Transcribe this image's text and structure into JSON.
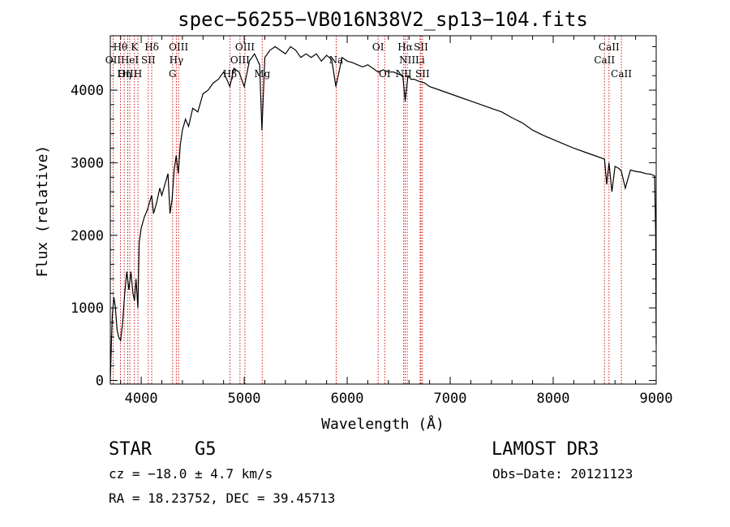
{
  "chart_data": {
    "type": "line",
    "title": "spec−56255−VB016N38V2_sp13−104.fits",
    "xlabel": "Wavelength (Å)",
    "ylabel": "Flux (relative)",
    "xlim": [
      3700,
      9000
    ],
    "ylim": [
      -50,
      4750
    ],
    "xticks": [
      4000,
      5000,
      6000,
      7000,
      8000,
      9000
    ],
    "yticks": [
      0,
      1000,
      2000,
      3000,
      4000
    ],
    "grid": false,
    "series": [
      {
        "name": "flux",
        "x": [
          3700,
          3710,
          3720,
          3735,
          3750,
          3765,
          3780,
          3800,
          3820,
          3840,
          3860,
          3880,
          3900,
          3920,
          3935,
          3950,
          3968,
          3980,
          4000,
          4030,
          4060,
          4080,
          4102,
          4120,
          4150,
          4180,
          4200,
          4230,
          4260,
          4280,
          4300,
          4320,
          4340,
          4360,
          4380,
          4400,
          4430,
          4460,
          4500,
          4550,
          4600,
          4650,
          4700,
          4750,
          4800,
          4861,
          4900,
          4950,
          5000,
          5050,
          5100,
          5150,
          5172,
          5200,
          5250,
          5300,
          5350,
          5400,
          5450,
          5500,
          5550,
          5600,
          5650,
          5700,
          5750,
          5800,
          5850,
          5890,
          5950,
          6000,
          6050,
          6100,
          6150,
          6200,
          6250,
          6300,
          6350,
          6400,
          6450,
          6500,
          6540,
          6563,
          6590,
          6620,
          6650,
          6700,
          6750,
          6800,
          6900,
          7000,
          7100,
          7200,
          7300,
          7400,
          7500,
          7600,
          7700,
          7800,
          7900,
          8000,
          8100,
          8200,
          8300,
          8400,
          8498,
          8520,
          8542,
          8570,
          8600,
          8640,
          8662,
          8700,
          8750,
          8800,
          8850,
          8900,
          8950,
          8985,
          8995,
          9000
        ],
        "y": [
          0,
          500,
          900,
          1150,
          1000,
          700,
          600,
          550,
          800,
          1200,
          1500,
          1250,
          1500,
          1200,
          1100,
          1400,
          1000,
          1900,
          2100,
          2250,
          2350,
          2450,
          2550,
          2300,
          2450,
          2650,
          2550,
          2700,
          2850,
          2300,
          2500,
          2900,
          3100,
          2850,
          3250,
          3450,
          3600,
          3500,
          3750,
          3700,
          3950,
          4000,
          4100,
          4150,
          4250,
          4050,
          4300,
          4250,
          4050,
          4400,
          4500,
          4350,
          3450,
          4450,
          4550,
          4600,
          4550,
          4500,
          4600,
          4550,
          4450,
          4500,
          4450,
          4500,
          4400,
          4480,
          4420,
          4050,
          4450,
          4400,
          4380,
          4350,
          4320,
          4350,
          4300,
          4250,
          4280,
          4250,
          4250,
          4220,
          4200,
          3850,
          4200,
          4150,
          4150,
          4120,
          4100,
          4050,
          4000,
          3950,
          3900,
          3850,
          3800,
          3750,
          3700,
          3620,
          3550,
          3450,
          3380,
          3320,
          3260,
          3200,
          3150,
          3100,
          3050,
          2700,
          3000,
          2600,
          2950,
          2920,
          2880,
          2650,
          2900,
          2880,
          2870,
          2850,
          2840,
          2820,
          2000,
          500
        ]
      }
    ],
    "spectral_lines": [
      {
        "name": "Hθ",
        "wavelength": 3798,
        "row": 1
      },
      {
        "name": "OII",
        "wavelength": 3727,
        "row": 2
      },
      {
        "name": "OIII",
        "wavelength": 3869,
        "row": 3
      },
      {
        "name": "Hη",
        "wavelength": 3835,
        "row": 3
      },
      {
        "name": "HeI",
        "wavelength": 3889,
        "row": 2
      },
      {
        "name": "K",
        "wavelength": 3934,
        "row": 1
      },
      {
        "name": "SII",
        "wavelength": 4069,
        "row": 2
      },
      {
        "name": "H",
        "wavelength": 3968,
        "row": 3
      },
      {
        "name": "Hδ",
        "wavelength": 4102,
        "row": 1
      },
      {
        "name": "OIII",
        "wavelength": 4363,
        "row": 1
      },
      {
        "name": "Hγ",
        "wavelength": 4341,
        "row": 2
      },
      {
        "name": "G",
        "wavelength": 4305,
        "row": 3
      },
      {
        "name": "Hβ",
        "wavelength": 4861,
        "row": 3
      },
      {
        "name": "OIII",
        "wavelength": 5007,
        "row": 1
      },
      {
        "name": "OIII",
        "wavelength": 4959,
        "row": 2
      },
      {
        "name": "Mg",
        "wavelength": 5175,
        "row": 3
      },
      {
        "name": "Na",
        "wavelength": 5893,
        "row": 2
      },
      {
        "name": "OI",
        "wavelength": 6300,
        "row": 1
      },
      {
        "name": "OI",
        "wavelength": 6364,
        "row": 3
      },
      {
        "name": "Hα",
        "wavelength": 6563,
        "row": 1
      },
      {
        "name": "NII",
        "wavelength": 6583,
        "row": 2
      },
      {
        "name": "NII",
        "wavelength": 6548,
        "row": 3
      },
      {
        "name": "SII",
        "wavelength": 6716,
        "row": 1
      },
      {
        "name": "Li",
        "wavelength": 6708,
        "row": 2
      },
      {
        "name": "SII",
        "wavelength": 6731,
        "row": 3
      },
      {
        "name": "CaII",
        "wavelength": 8542,
        "row": 1
      },
      {
        "name": "CaII",
        "wavelength": 8498,
        "row": 2
      },
      {
        "name": "CaII",
        "wavelength": 8662,
        "row": 3
      }
    ],
    "line_color": "#cc0000",
    "flux_color": "#000000"
  },
  "info": {
    "object_class": "STAR",
    "subclass": "G5",
    "survey": "LAMOST DR3",
    "redshift": "cz = −18.0 ± 4.7 km/s",
    "obs_date": "Obs−Date: 20121123",
    "coords": "RA =  18.23752, DEC =  39.45713"
  }
}
